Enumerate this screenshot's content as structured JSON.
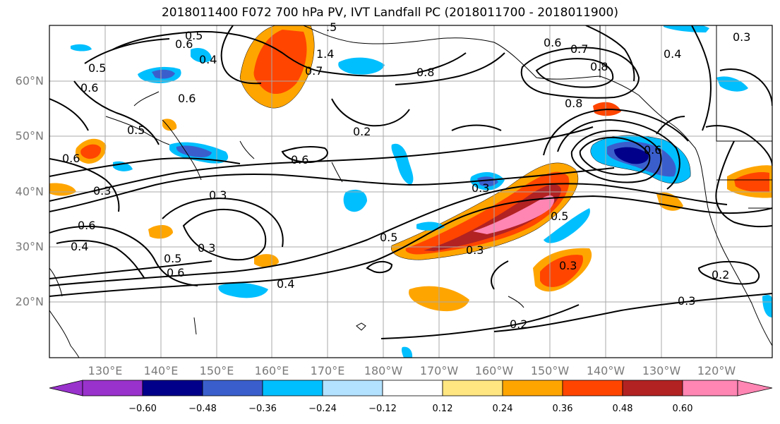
{
  "title": "2018011400 F072 700 hPa PV, IVT Landfall PC (2018011700 - 2018011900)",
  "lat_labels": [
    "60°N",
    "50°N",
    "40°N",
    "30°N",
    "20°N"
  ],
  "lon_labels": [
    "130°E",
    "140°E",
    "150°E",
    "160°E",
    "170°E",
    "180°W",
    "170°W",
    "160°W",
    "150°W",
    "140°W",
    "130°W",
    "120°W"
  ],
  "contour_labels": [
    ".5",
    "0.5",
    "0.6",
    "0.4",
    "0.6",
    "0.6",
    "0.5",
    "0.5",
    "0.6",
    "0.3",
    "0.6",
    "0.4",
    "1.4",
    "0.7",
    "0.8",
    "0.2",
    "0.6",
    "0.3",
    "0.3",
    "0.5",
    "0.5",
    "0.3",
    "0.3",
    "0.2",
    "0.2",
    "0.3",
    "0.4",
    "0.6",
    "0.5",
    "0.8",
    "0.7",
    "0.6",
    "0.8",
    "0.6",
    "0.4",
    "0.3",
    "0.3"
  ],
  "colorbar": {
    "ticks": [
      "−0.60",
      "−0.48",
      "−0.36",
      "−0.24",
      "−0.12",
      "0.12",
      "0.24",
      "0.36",
      "0.48",
      "0.60"
    ],
    "colors": [
      "#9932cc",
      "#00008b",
      "#3a5fcd",
      "#00bfff",
      "#b2e2ff",
      "#ffffff",
      "#ffe680",
      "#ffa500",
      "#ff4500",
      "#b22222",
      "#ff85b3"
    ]
  }
}
